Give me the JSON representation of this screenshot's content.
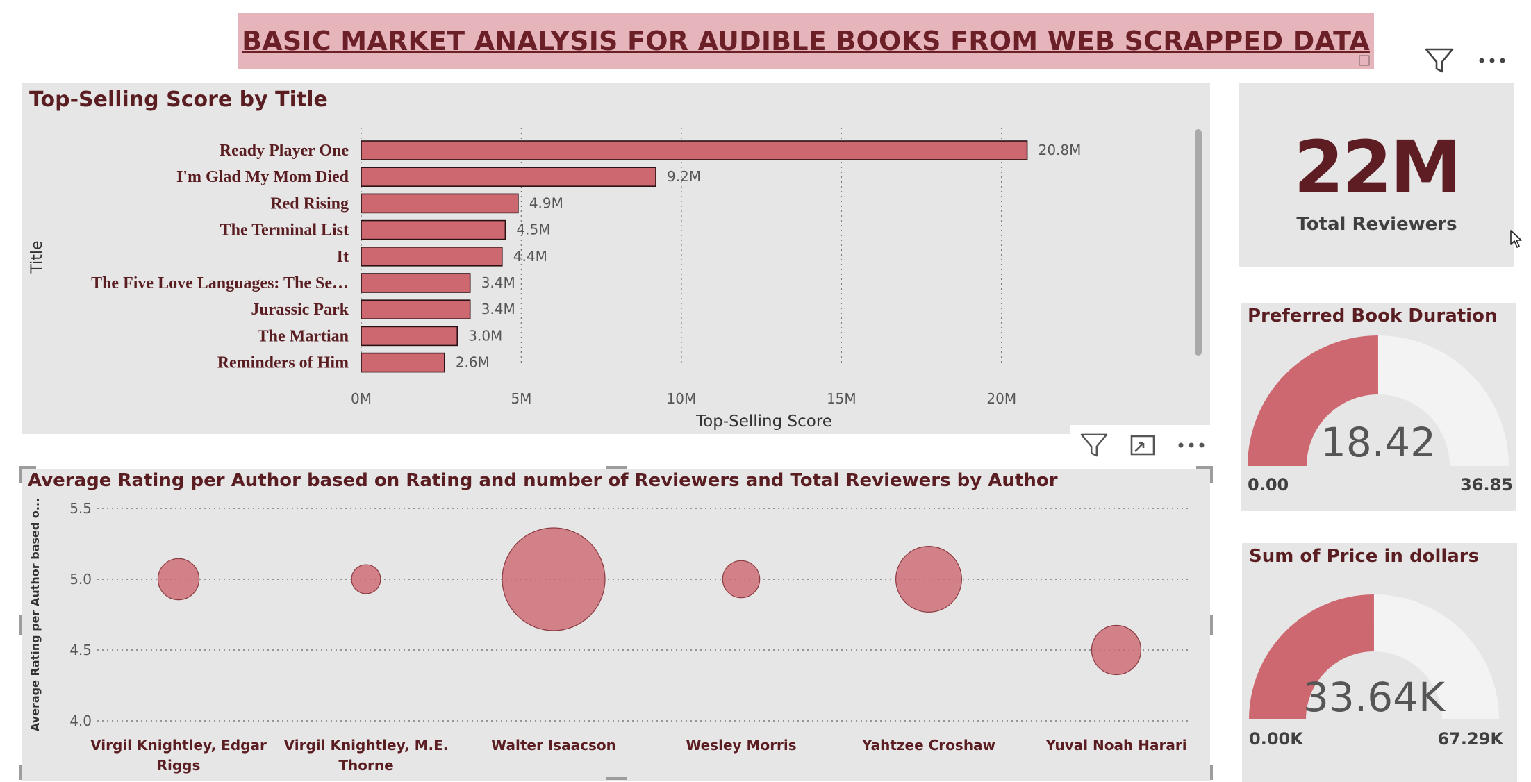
{
  "banner": {
    "title": "BASIC MARKET ANALYSIS FOR AUDIBLE BOOKS FROM WEB SCRAPPED DATA"
  },
  "icons": {
    "filter": "filter-icon",
    "more": "more-options-icon",
    "focus": "focus-mode-icon"
  },
  "colors": {
    "accent": "#cd6870",
    "accent_dark": "#5e1d22",
    "card_bg": "#e6e6e6",
    "banner_bg": "#e6b4bb",
    "gauge_track": "#f3f3f3"
  },
  "chart_data": [
    {
      "type": "bar",
      "orientation": "horizontal",
      "title": "Top-Selling Score by Title",
      "xlabel": "Top-Selling Score",
      "ylabel": "Title",
      "categories": [
        "Ready Player One",
        "I'm Glad My Mom Died",
        "Red Rising",
        "The Terminal List",
        "It",
        "The Five Love Languages: The Se…",
        "Jurassic Park",
        "The Martian",
        "Reminders of Him"
      ],
      "values": [
        20.8,
        9.2,
        4.9,
        4.5,
        4.4,
        3.4,
        3.4,
        3.0,
        2.6
      ],
      "data_labels": [
        "20.8M",
        "9.2M",
        "4.9M",
        "4.5M",
        "4.4M",
        "3.4M",
        "3.4M",
        "3.0M",
        "2.6M"
      ],
      "value_unit": "M",
      "xlim": [
        0,
        23
      ],
      "xticks": [
        0,
        5,
        10,
        15,
        20
      ],
      "xtick_labels": [
        "0M",
        "5M",
        "10M",
        "15M",
        "20M"
      ],
      "grid": true
    },
    {
      "type": "scatter",
      "title": "Average Rating per Author based on Rating and number of Reviewers and Total Reviewers by Author",
      "ylabel": "Average Rating per Author based o...",
      "categories": [
        "Virgil Knightley, Edgar Riggs",
        "Virgil Knightley, M.E. Thorne",
        "Walter Isaacson",
        "Wesley Morris",
        "Yahtzee Croshaw",
        "Yuval Noah Harari"
      ],
      "category_lines": [
        [
          "Virgil Knightley, Edgar",
          "Riggs"
        ],
        [
          "Virgil Knightley, M.E.",
          "Thorne"
        ],
        [
          "Walter Isaacson"
        ],
        [
          "Wesley Morris"
        ],
        [
          "Yahtzee Croshaw"
        ],
        [
          "Yuval Noah Harari"
        ]
      ],
      "values": [
        5.0,
        5.0,
        5.0,
        5.0,
        5.0,
        4.5
      ],
      "bubble_size_relative": [
        0.16,
        0.08,
        1.0,
        0.13,
        0.41,
        0.23
      ],
      "ylim": [
        4.0,
        5.5
      ],
      "yticks": [
        4.0,
        4.5,
        5.0,
        5.5
      ],
      "ytick_labels": [
        "4.0",
        "4.5",
        "5.0",
        "5.5"
      ],
      "grid": true
    }
  ],
  "kpi": {
    "value": "22M",
    "label": "Total Reviewers"
  },
  "gauges": [
    {
      "title": "Preferred Book Duration",
      "value": 18.42,
      "min": 0,
      "max": 36.85,
      "value_label": "18.42",
      "min_label": "0.00",
      "max_label": "36.85"
    },
    {
      "title": "Sum of Price in dollars",
      "value": 33.64,
      "min": 0,
      "max": 67.29,
      "value_label": "33.64K",
      "min_label": "0.00K",
      "max_label": "67.29K"
    }
  ]
}
